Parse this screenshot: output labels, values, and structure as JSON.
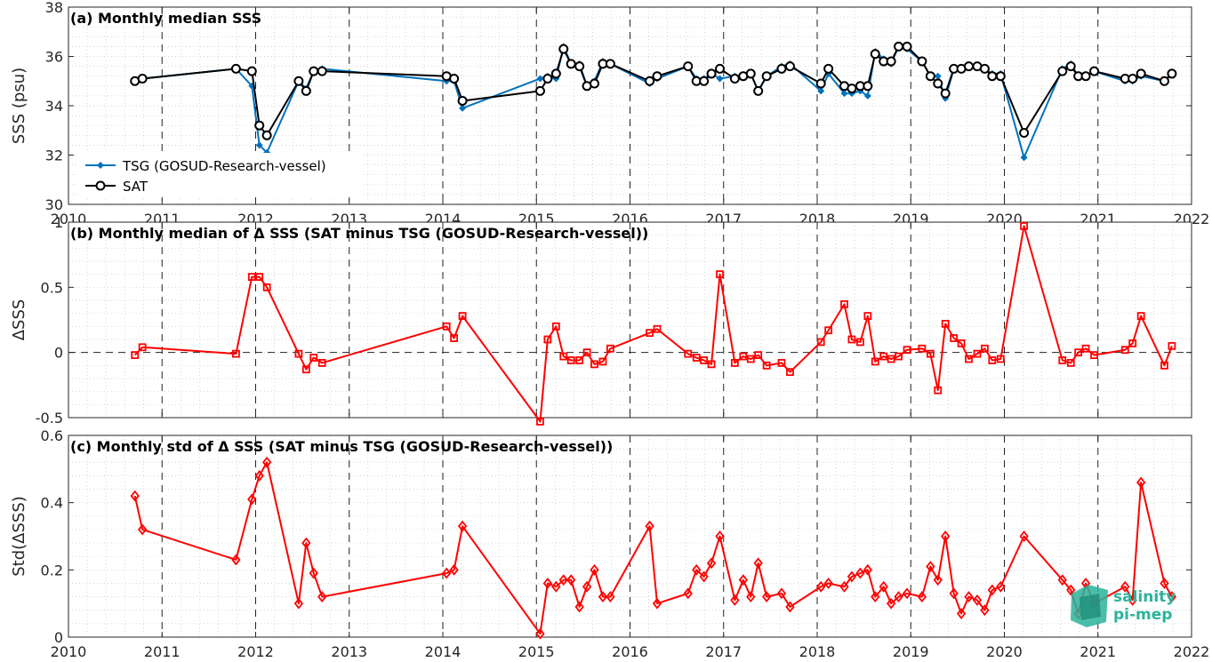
{
  "chart_data": [
    {
      "type": "line",
      "title": "(a) Monthly median SSS",
      "ylabel": "SSS (psu)",
      "ylim": [
        30,
        38
      ],
      "yticks": [
        "30",
        "32",
        "34",
        "36",
        "38"
      ],
      "xlim": [
        2010,
        2022
      ],
      "xticks": [
        "2010",
        "2011",
        "2012",
        "2013",
        "2014",
        "2015",
        "2016",
        "2017",
        "2018",
        "2019",
        "2020",
        "2021",
        "2022"
      ],
      "grid": "dotted",
      "legend_position": "bottom-left",
      "series": [
        {
          "name": "TSG (GOSUD-Research-vessel)",
          "color": "#0072bd",
          "marker": "filled-diamond",
          "x": [
            2010.71,
            2010.79,
            2011.79,
            2011.96,
            2012.04,
            2012.12,
            2012.46,
            2012.54,
            2012.62,
            2012.71,
            2014.04,
            2014.12,
            2014.21,
            2015.04,
            2015.12,
            2015.21,
            2015.29,
            2015.37,
            2015.46,
            2015.54,
            2015.62,
            2015.71,
            2015.79,
            2016.21,
            2016.29,
            2016.62,
            2016.71,
            2016.79,
            2016.87,
            2016.96,
            2017.12,
            2017.21,
            2017.29,
            2017.37,
            2017.46,
            2017.62,
            2017.71,
            2018.04,
            2018.12,
            2018.29,
            2018.37,
            2018.46,
            2018.54,
            2018.62,
            2018.71,
            2018.79,
            2018.87,
            2018.96,
            2019.12,
            2019.21,
            2019.29,
            2019.37,
            2019.46,
            2019.54,
            2019.62,
            2019.71,
            2019.79,
            2019.87,
            2019.96,
            2020.21,
            2020.62,
            2020.71,
            2020.79,
            2020.87,
            2020.96,
            2021.29,
            2021.37,
            2021.46,
            2021.71,
            2021.79
          ],
          "y": [
            35.0,
            35.1,
            35.5,
            34.8,
            32.4,
            32.1,
            35.0,
            34.7,
            35.4,
            35.5,
            35.0,
            35.0,
            33.9,
            35.1,
            35.2,
            35.1,
            36.4,
            35.7,
            35.7,
            34.8,
            35.0,
            35.8,
            35.7,
            34.9,
            35.1,
            35.6,
            35.1,
            35.1,
            35.3,
            35.1,
            35.2,
            35.2,
            35.3,
            34.6,
            35.2,
            35.6,
            35.7,
            34.6,
            35.3,
            34.5,
            34.5,
            34.6,
            34.4,
            36.2,
            35.9,
            35.7,
            36.4,
            36.3,
            35.8,
            35.2,
            35.2,
            34.3,
            35.5,
            35.5,
            35.6,
            35.6,
            35.5,
            35.3,
            35.3,
            31.9,
            35.5,
            35.7,
            35.2,
            35.2,
            35.4,
            35.0,
            35.0,
            35.2,
            35.0,
            35.3
          ]
        },
        {
          "name": "SAT",
          "color": "#000000",
          "marker": "open-circle",
          "x": [
            2010.71,
            2010.79,
            2011.79,
            2011.96,
            2012.04,
            2012.12,
            2012.46,
            2012.54,
            2012.62,
            2012.71,
            2014.04,
            2014.12,
            2014.21,
            2015.04,
            2015.12,
            2015.21,
            2015.29,
            2015.37,
            2015.46,
            2015.54,
            2015.62,
            2015.71,
            2015.79,
            2016.21,
            2016.29,
            2016.62,
            2016.71,
            2016.79,
            2016.87,
            2016.96,
            2017.12,
            2017.21,
            2017.29,
            2017.37,
            2017.46,
            2017.62,
            2017.71,
            2018.04,
            2018.12,
            2018.29,
            2018.37,
            2018.46,
            2018.54,
            2018.62,
            2018.71,
            2018.79,
            2018.87,
            2018.96,
            2019.12,
            2019.21,
            2019.29,
            2019.37,
            2019.46,
            2019.54,
            2019.62,
            2019.71,
            2019.79,
            2019.87,
            2019.96,
            2020.21,
            2020.62,
            2020.71,
            2020.79,
            2020.87,
            2020.96,
            2021.29,
            2021.37,
            2021.46,
            2021.71,
            2021.79
          ],
          "y": [
            35.0,
            35.1,
            35.5,
            35.4,
            33.2,
            32.8,
            35.0,
            34.6,
            35.4,
            35.4,
            35.2,
            35.1,
            34.2,
            34.6,
            35.1,
            35.3,
            36.3,
            35.7,
            35.6,
            34.8,
            34.9,
            35.7,
            35.7,
            35.0,
            35.2,
            35.6,
            35.0,
            35.0,
            35.3,
            35.5,
            35.1,
            35.2,
            35.3,
            34.6,
            35.2,
            35.5,
            35.6,
            34.9,
            35.5,
            34.8,
            34.7,
            34.8,
            34.8,
            36.1,
            35.8,
            35.8,
            36.4,
            36.4,
            35.8,
            35.2,
            34.9,
            34.5,
            35.5,
            35.5,
            35.6,
            35.6,
            35.5,
            35.2,
            35.2,
            32.9,
            35.4,
            35.6,
            35.2,
            35.2,
            35.4,
            35.1,
            35.1,
            35.3,
            35.0,
            35.3
          ]
        }
      ]
    },
    {
      "type": "line",
      "title": "(b) Monthly median of Δ SSS (SAT minus TSG (GOSUD-Research-vessel))",
      "ylabel": "ΔSSS",
      "ylim": [
        -0.5,
        1
      ],
      "yticks": [
        "-0.5",
        "0",
        "0.5",
        "1"
      ],
      "xlim": [
        2010,
        2022
      ],
      "grid": "dotted",
      "zero_line": "dashed",
      "series": [
        {
          "color": "#ff0000",
          "marker": "open-square",
          "x": [
            2010.71,
            2010.79,
            2011.79,
            2011.96,
            2012.04,
            2012.12,
            2012.46,
            2012.54,
            2012.62,
            2012.71,
            2014.04,
            2014.12,
            2014.21,
            2015.04,
            2015.12,
            2015.21,
            2015.29,
            2015.37,
            2015.46,
            2015.54,
            2015.62,
            2015.71,
            2015.79,
            2016.21,
            2016.29,
            2016.62,
            2016.71,
            2016.79,
            2016.87,
            2016.96,
            2017.12,
            2017.21,
            2017.29,
            2017.37,
            2017.46,
            2017.62,
            2017.71,
            2018.04,
            2018.12,
            2018.29,
            2018.37,
            2018.46,
            2018.54,
            2018.62,
            2018.71,
            2018.79,
            2018.87,
            2018.96,
            2019.12,
            2019.21,
            2019.29,
            2019.37,
            2019.46,
            2019.54,
            2019.62,
            2019.71,
            2019.79,
            2019.87,
            2019.96,
            2020.21,
            2020.62,
            2020.71,
            2020.79,
            2020.87,
            2020.96,
            2021.29,
            2021.37,
            2021.46,
            2021.71,
            2021.79
          ],
          "y": [
            -0.02,
            0.04,
            -0.01,
            0.58,
            0.58,
            0.5,
            -0.01,
            -0.13,
            -0.04,
            -0.08,
            0.2,
            0.11,
            0.28,
            -0.53,
            0.1,
            0.2,
            -0.03,
            -0.06,
            -0.06,
            0.0,
            -0.09,
            -0.07,
            0.03,
            0.15,
            0.18,
            -0.01,
            -0.04,
            -0.06,
            -0.09,
            0.6,
            -0.08,
            -0.03,
            -0.05,
            -0.02,
            -0.1,
            -0.08,
            -0.15,
            0.08,
            0.17,
            0.37,
            0.1,
            0.08,
            0.28,
            -0.07,
            -0.03,
            -0.05,
            -0.03,
            0.02,
            0.03,
            -0.01,
            -0.29,
            0.22,
            0.11,
            0.07,
            -0.05,
            -0.01,
            0.03,
            -0.06,
            -0.05,
            0.97,
            -0.06,
            -0.08,
            0.0,
            0.03,
            -0.02,
            0.02,
            0.07,
            0.28,
            -0.1,
            0.05
          ]
        }
      ]
    },
    {
      "type": "line",
      "title": "(c) Monthly std of Δ SSS (SAT minus TSG (GOSUD-Research-vessel))",
      "ylabel": "Std(ΔSSS)",
      "ylim": [
        0,
        0.6
      ],
      "yticks": [
        "0",
        "0.2",
        "0.4",
        "0.6"
      ],
      "xlim": [
        2010,
        2022
      ],
      "xticks": [
        "2010",
        "2011",
        "2012",
        "2013",
        "2014",
        "2015",
        "2016",
        "2017",
        "2018",
        "2019",
        "2020",
        "2021",
        "2022"
      ],
      "grid": "dotted",
      "series": [
        {
          "color": "#ff0000",
          "marker": "open-diamond",
          "x": [
            2010.71,
            2010.79,
            2011.79,
            2011.96,
            2012.04,
            2012.12,
            2012.46,
            2012.54,
            2012.62,
            2012.71,
            2014.04,
            2014.12,
            2014.21,
            2015.04,
            2015.12,
            2015.21,
            2015.29,
            2015.37,
            2015.46,
            2015.54,
            2015.62,
            2015.71,
            2015.79,
            2016.21,
            2016.29,
            2016.62,
            2016.71,
            2016.79,
            2016.87,
            2016.96,
            2017.12,
            2017.21,
            2017.29,
            2017.37,
            2017.46,
            2017.62,
            2017.71,
            2018.04,
            2018.12,
            2018.29,
            2018.37,
            2018.46,
            2018.54,
            2018.62,
            2018.71,
            2018.79,
            2018.87,
            2018.96,
            2019.12,
            2019.21,
            2019.29,
            2019.37,
            2019.46,
            2019.54,
            2019.62,
            2019.71,
            2019.79,
            2019.87,
            2019.96,
            2020.21,
            2020.62,
            2020.71,
            2020.79,
            2020.87,
            2020.96,
            2021.29,
            2021.37,
            2021.46,
            2021.71,
            2021.79
          ],
          "y": [
            0.42,
            0.32,
            0.23,
            0.41,
            0.48,
            0.52,
            0.1,
            0.28,
            0.19,
            0.12,
            0.19,
            0.2,
            0.33,
            0.01,
            0.16,
            0.15,
            0.17,
            0.17,
            0.09,
            0.15,
            0.2,
            0.12,
            0.12,
            0.33,
            0.1,
            0.13,
            0.2,
            0.18,
            0.22,
            0.3,
            0.11,
            0.17,
            0.12,
            0.22,
            0.12,
            0.13,
            0.09,
            0.15,
            0.16,
            0.15,
            0.18,
            0.19,
            0.2,
            0.12,
            0.15,
            0.1,
            0.12,
            0.13,
            0.12,
            0.21,
            0.17,
            0.3,
            0.13,
            0.07,
            0.12,
            0.11,
            0.08,
            0.14,
            0.15,
            0.3,
            0.17,
            0.14,
            0.07,
            0.16,
            0.1,
            0.15,
            0.11,
            0.46,
            0.16,
            0.12
          ]
        }
      ]
    }
  ],
  "logo": {
    "line1": "salinity",
    "line2": "pi-mep"
  }
}
